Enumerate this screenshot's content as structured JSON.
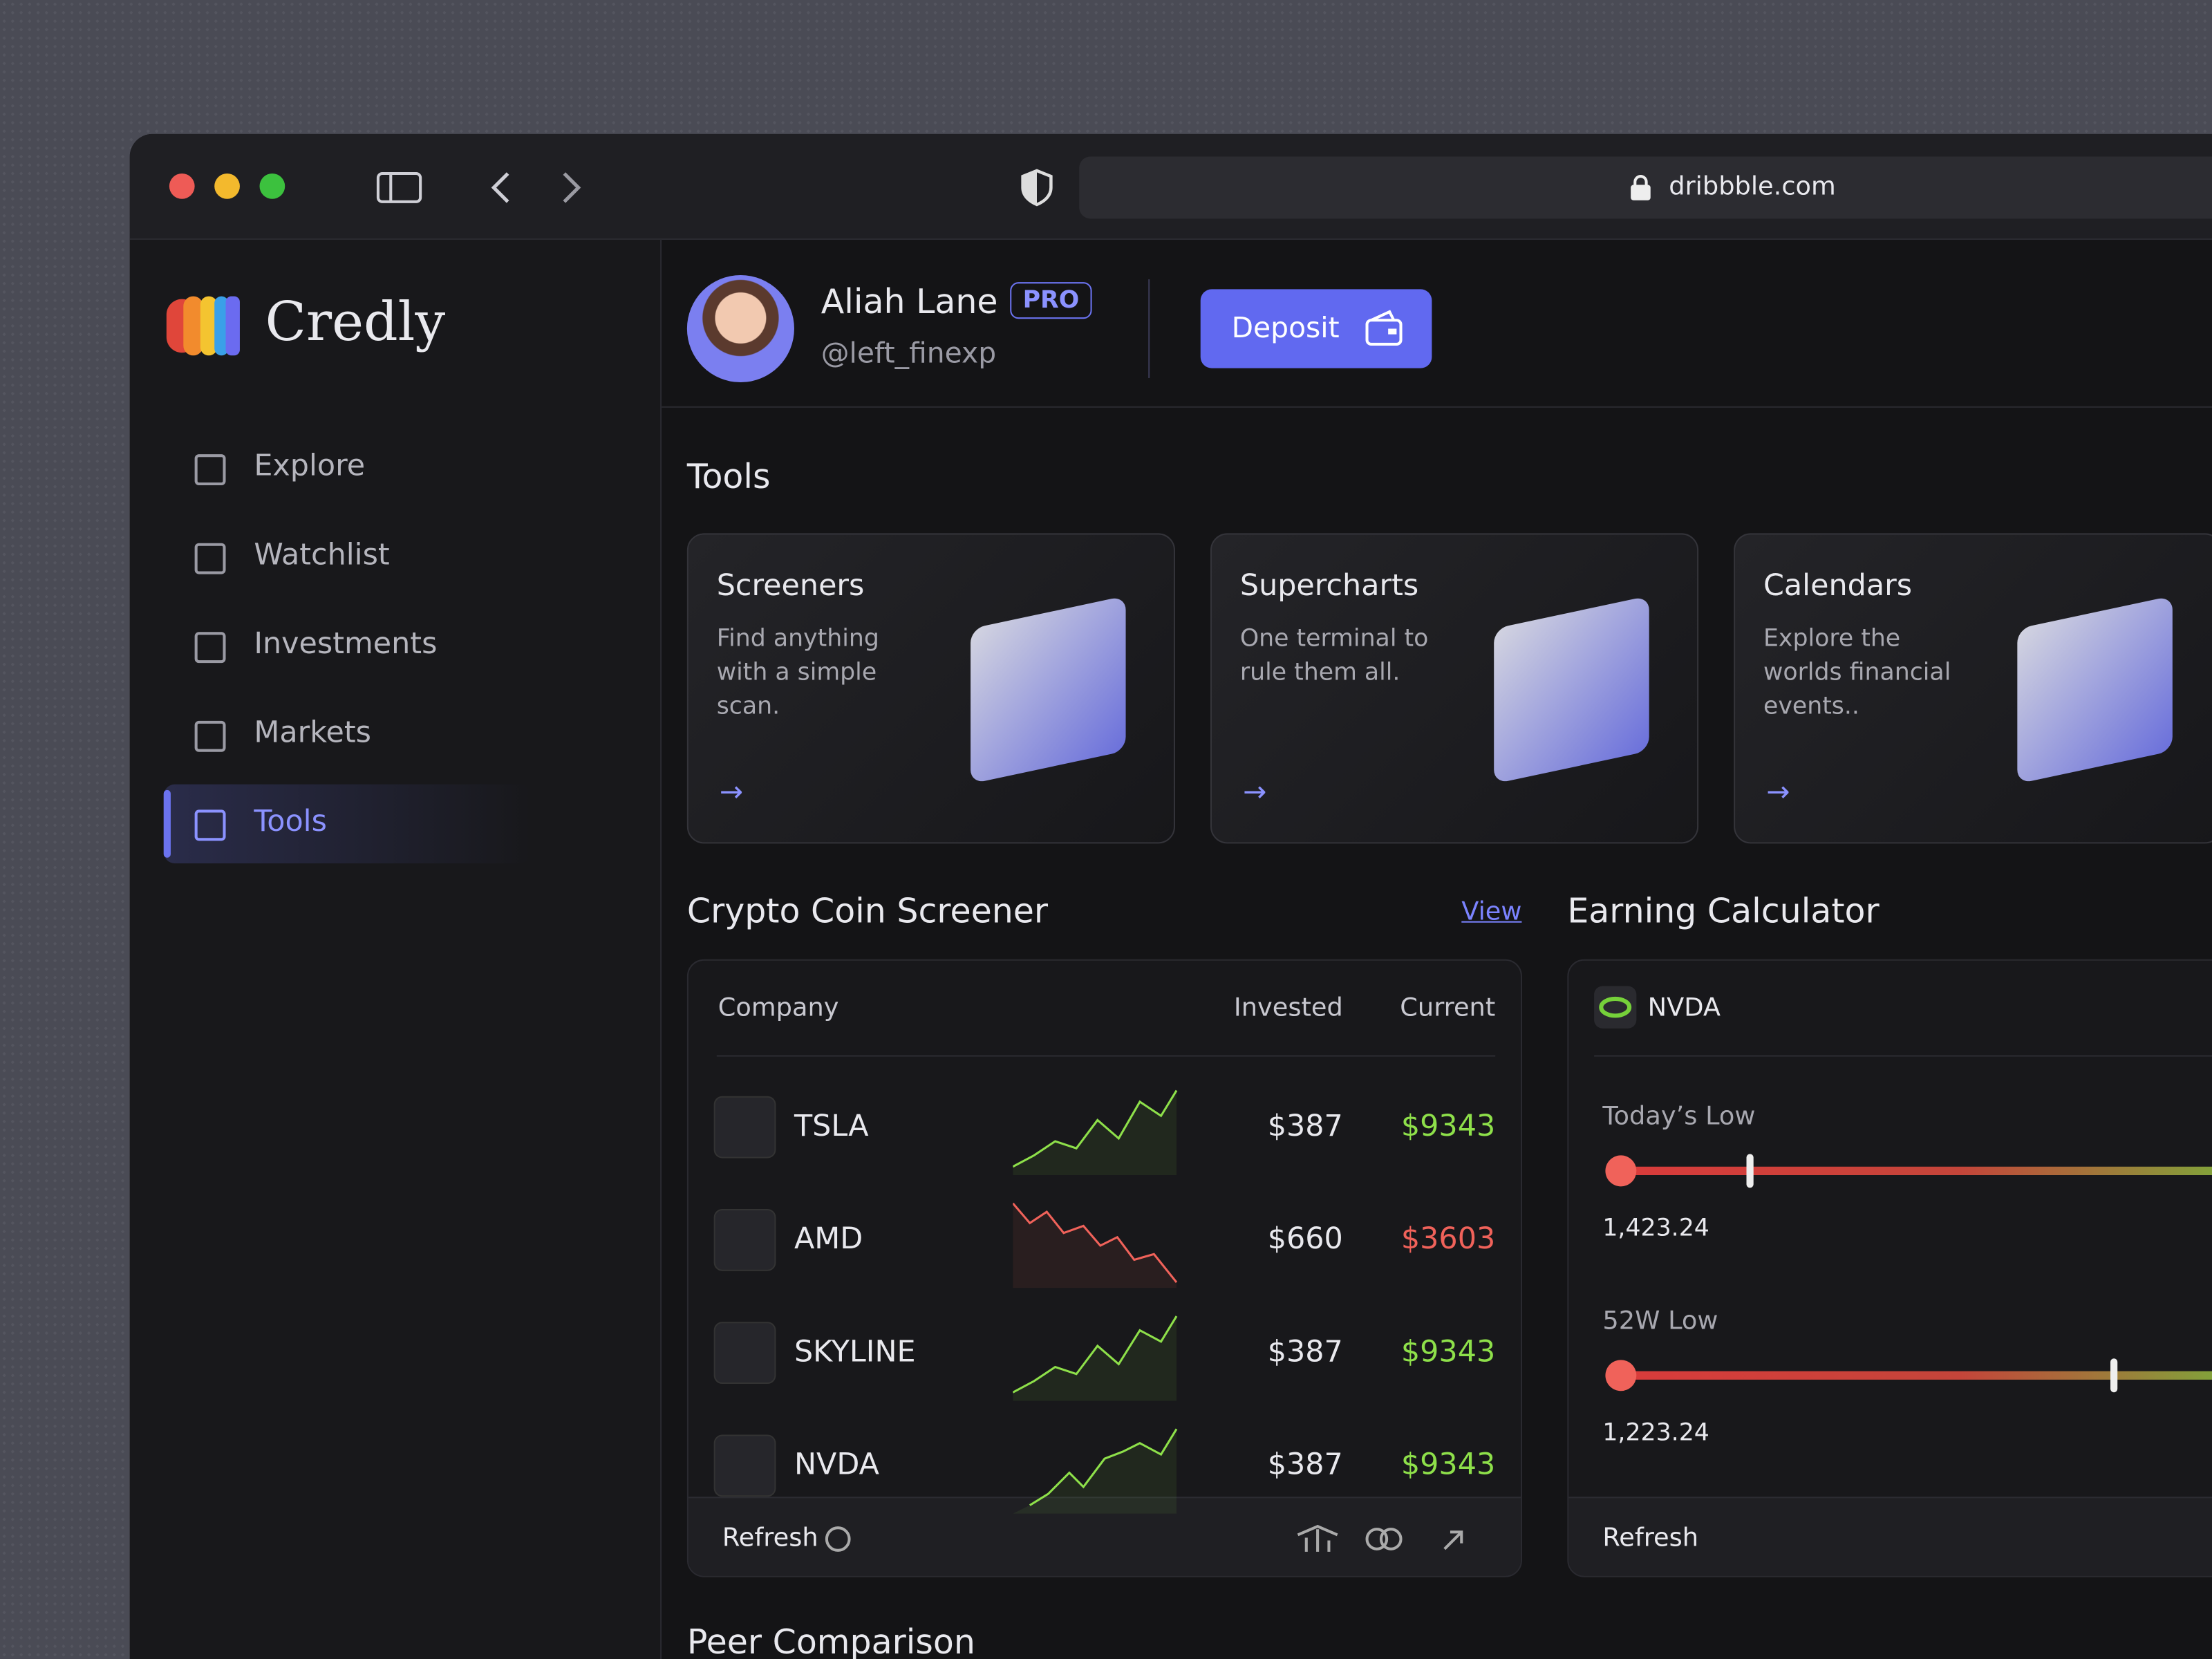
{
  "browser": {
    "url": "dribbble.com"
  },
  "sidebar": {
    "brand": "Credly",
    "nav": [
      "Explore",
      "Watchlist",
      "Investments",
      "Markets",
      "Tools"
    ],
    "active": 4
  },
  "profile": {
    "name": "Aliah Lane",
    "badge": "PRO",
    "handle": "@left_finexp",
    "button": "Deposit"
  },
  "tools": {
    "title": "Tools",
    "cards": [
      {
        "title": "Screeners",
        "description": "Find anything with a simple scan."
      },
      {
        "title": "Supercharts",
        "description": "One terminal to rule them all."
      },
      {
        "title": "Calendars",
        "description": "Explore the worlds financial events.."
      }
    ]
  },
  "screener": {
    "title": "Crypto Coin Screener",
    "link": "View",
    "columns": [
      "Company",
      "Invested",
      "Current"
    ],
    "rows": [
      {
        "ticker": "TSLA",
        "invested": "$387",
        "current": "$9343",
        "color": "#8ee04a"
      },
      {
        "ticker": "AMD",
        "invested": "$660",
        "current": "$3603",
        "color": "#f0625a"
      },
      {
        "ticker": "SKYLINE",
        "invested": "$387",
        "current": "$9343",
        "color": "#8ee04a"
      },
      {
        "ticker": "NVDA",
        "invested": "$387",
        "current": "$9343",
        "color": "#8ee04a"
      }
    ],
    "refresh": "Refresh"
  },
  "calculator": {
    "title": "Earning Calculator",
    "ticker": "NVDA",
    "ranges": [
      {
        "label": "Today’s Low",
        "value": "1,423.24"
      },
      {
        "label": "52W Low",
        "value": "1,223.24"
      }
    ],
    "refresh": "Refresh"
  },
  "peer": {
    "title": "Peer Comparison"
  }
}
